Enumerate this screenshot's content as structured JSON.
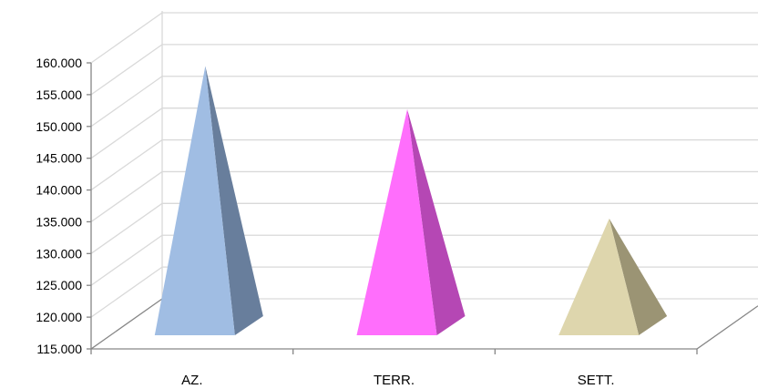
{
  "chart_data": {
    "type": "bar",
    "shape": "3d-pyramid",
    "categories": [
      "AZ.",
      "TERR.",
      "SETT."
    ],
    "values": [
      158000,
      151200,
      134000
    ],
    "ylim": [
      115000,
      160000
    ],
    "y_ticks": [
      "115.000",
      "120.000",
      "125.000",
      "130.000",
      "135.000",
      "140.000",
      "145.000",
      "150.000",
      "155.000",
      "160.000"
    ],
    "grid": true,
    "legend": "none",
    "colors": [
      {
        "front": "#a0bde3",
        "side": "#687e9c"
      },
      {
        "front": "#ff6efc",
        "side": "#b547b4"
      },
      {
        "front": "#ded6ad",
        "side": "#9b9474"
      }
    ],
    "grid_color": "#d9d9d9",
    "axis_color": "#868686"
  }
}
